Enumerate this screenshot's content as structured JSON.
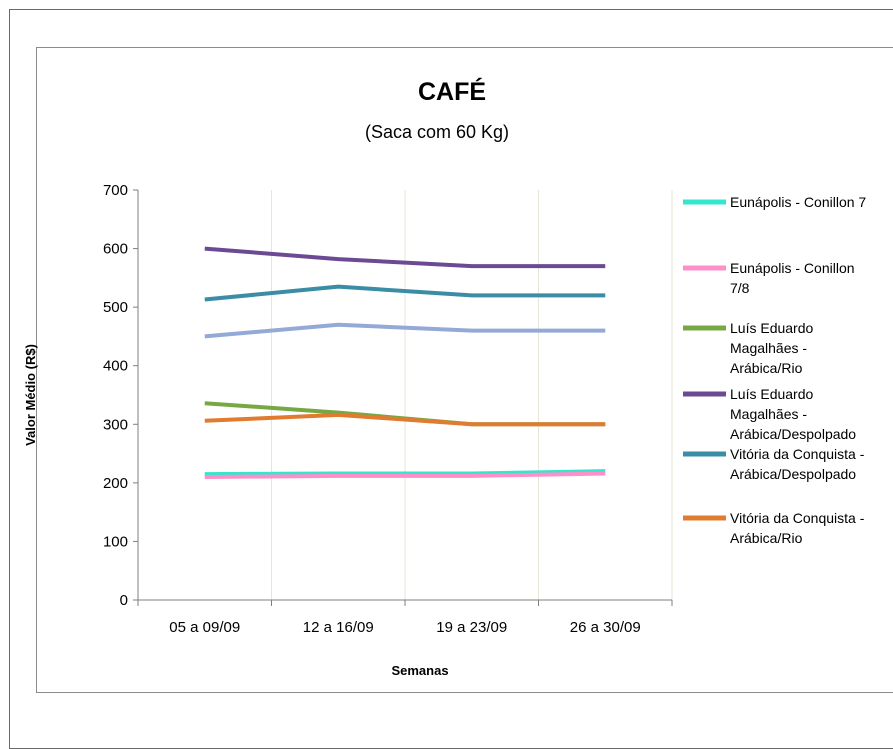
{
  "chart_data": {
    "type": "line",
    "title": "CAFÉ",
    "subtitle": "(Saca com 60 Kg)",
    "xlabel": "Semanas",
    "ylabel": "Valor Médio (R$)",
    "ylim": [
      0,
      700
    ],
    "yticks": [
      0,
      100,
      200,
      300,
      400,
      500,
      600,
      700
    ],
    "categories": [
      "05 a 09/09",
      "12 a 16/09",
      "19 a 23/09",
      "26 a 30/09"
    ],
    "grid": "vertical",
    "legend": "right",
    "series": [
      {
        "name": "Eunápolis - Conillon 7",
        "legend_lines": [
          "Eunápolis - Conillon 7"
        ],
        "color": "#33e6cc",
        "values": [
          215,
          216,
          216,
          220
        ]
      },
      {
        "name": "Eunápolis - Conillon 7/8",
        "legend_lines": [
          "Eunápolis - Conillon",
          "7/8"
        ],
        "color": "#ff8fc8",
        "values": [
          210,
          212,
          212,
          216
        ]
      },
      {
        "name": "Luís Eduardo Magalhães - Arábica/Rio",
        "legend_lines": [
          "Luís Eduardo",
          "Magalhães -",
          "Arábica/Rio"
        ],
        "color": "#77a843",
        "values": [
          336,
          320,
          300,
          300
        ]
      },
      {
        "name": "Luís Eduardo Magalhães - Arábica/Despolpado",
        "legend_lines": [
          "Luís Eduardo",
          "Magalhães -",
          "Arábica/Despolpado"
        ],
        "color": "#6b4a93",
        "values": [
          600,
          582,
          570,
          570
        ]
      },
      {
        "name": "Vitória da Conquista - Arábica/Despolpado",
        "legend_lines": [
          "Vitória da Conquista -",
          "Arábica/Despolpado"
        ],
        "color": "#3a8da5",
        "values": [
          513,
          535,
          520,
          520
        ]
      },
      {
        "name": "Vitória da Conquista - Arábica/Rio",
        "legend_lines": [
          "Vitória da Conquista -",
          "Arábica/Rio"
        ],
        "color": "#e07b30",
        "values": [
          306,
          316,
          300,
          300
        ]
      },
      {
        "name": "",
        "color": "#93aad6",
        "values": [
          450,
          470,
          460,
          460
        ]
      }
    ]
  }
}
